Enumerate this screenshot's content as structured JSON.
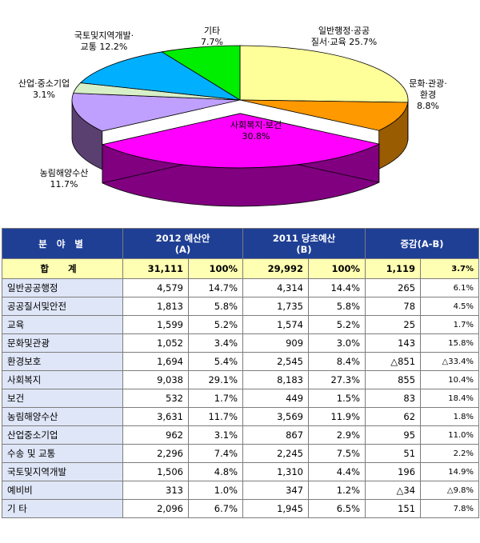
{
  "chart_data": {
    "type": "pie",
    "slices": [
      {
        "name_lines": [
          "일반행정·공공",
          "질서·교육 25.7%"
        ],
        "value": 25.7,
        "color": "#ffff99",
        "side": "#c9c97a"
      },
      {
        "name_lines": [
          "문화·관광·",
          "환경",
          "8.8%"
        ],
        "value": 8.8,
        "color": "#ff9900",
        "side": "#995c00"
      },
      {
        "name_lines": [
          "사회복지·보건",
          "30.8%"
        ],
        "value": 30.8,
        "color": "#ff00ff",
        "side": "#800080"
      },
      {
        "name_lines": [
          "농림해양수산",
          "11.7%"
        ],
        "value": 11.7,
        "color": "#c0a0ff",
        "side": "#5a4070"
      },
      {
        "name_lines": [
          "산업·중소기업",
          "3.1%"
        ],
        "value": 3.1,
        "color": "#d8f0c8",
        "side": "#8aa080"
      },
      {
        "name_lines": [
          "국토및지역개발·",
          "교통 12.2%"
        ],
        "value": 12.2,
        "color": "#00b0ff",
        "side": "#0070a0"
      },
      {
        "name_lines": [
          "기타",
          "7.7%"
        ],
        "value": 7.7,
        "color": "#00ee00",
        "side": "#009000"
      }
    ]
  },
  "table": {
    "headers": {
      "category": "분 야 별",
      "y2012_line1": "2012 예산안",
      "y2012_line2": "(A)",
      "y2011_line1": "2011 당초예산",
      "y2011_line2": "(B)",
      "change": "증감(A-B)"
    },
    "total": {
      "label": "합 계",
      "a": "31,111",
      "a_pct": "100%",
      "b": "29,992",
      "b_pct": "100%",
      "diff": "1,119",
      "diff_pct": "3.7%"
    },
    "rows": [
      {
        "label": "일반공공행정",
        "a": "4,579",
        "a_pct": "14.7%",
        "b": "4,314",
        "b_pct": "14.4%",
        "diff": "265",
        "diff_pct": "6.1%"
      },
      {
        "label": "공공질서및안전",
        "a": "1,813",
        "a_pct": "5.8%",
        "b": "1,735",
        "b_pct": "5.8%",
        "diff": "78",
        "diff_pct": "4.5%"
      },
      {
        "label": "교육",
        "a": "1,599",
        "a_pct": "5.2%",
        "b": "1,574",
        "b_pct": "5.2%",
        "diff": "25",
        "diff_pct": "1.7%"
      },
      {
        "label": "문화및관광",
        "a": "1,052",
        "a_pct": "3.4%",
        "b": "909",
        "b_pct": "3.0%",
        "diff": "143",
        "diff_pct": "15.8%"
      },
      {
        "label": "환경보호",
        "a": "1,694",
        "a_pct": "5.4%",
        "b": "2,545",
        "b_pct": "8.4%",
        "diff": "△851",
        "diff_pct": "△33.4%"
      },
      {
        "label": "사회복지",
        "a": "9,038",
        "a_pct": "29.1%",
        "b": "8,183",
        "b_pct": "27.3%",
        "diff": "855",
        "diff_pct": "10.4%"
      },
      {
        "label": "보건",
        "a": "532",
        "a_pct": "1.7%",
        "b": "449",
        "b_pct": "1.5%",
        "diff": "83",
        "diff_pct": "18.4%"
      },
      {
        "label": "농림해양수산",
        "a": "3,631",
        "a_pct": "11.7%",
        "b": "3,569",
        "b_pct": "11.9%",
        "diff": "62",
        "diff_pct": "1.8%"
      },
      {
        "label": "산업중소기업",
        "a": "962",
        "a_pct": "3.1%",
        "b": "867",
        "b_pct": "2.9%",
        "diff": "95",
        "diff_pct": "11.0%"
      },
      {
        "label": "수송 및 교통",
        "a": "2,296",
        "a_pct": "7.4%",
        "b": "2,245",
        "b_pct": "7.5%",
        "diff": "51",
        "diff_pct": "2.2%"
      },
      {
        "label": "국토및지역개발",
        "a": "1,506",
        "a_pct": "4.8%",
        "b": "1,310",
        "b_pct": "4.4%",
        "diff": "196",
        "diff_pct": "14.9%"
      },
      {
        "label": "예비비",
        "a": "313",
        "a_pct": "1.0%",
        "b": "347",
        "b_pct": "1.2%",
        "diff": "△34",
        "diff_pct": "△9.8%"
      },
      {
        "label": "기 타",
        "a": "2,096",
        "a_pct": "6.7%",
        "b": "1,945",
        "b_pct": "6.5%",
        "diff": "151",
        "diff_pct": "7.8%"
      }
    ]
  }
}
